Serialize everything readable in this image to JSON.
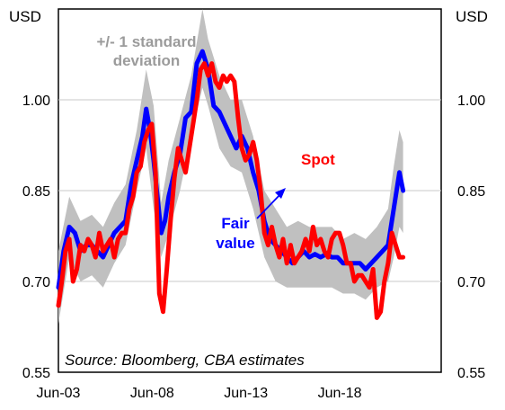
{
  "chart_data": {
    "type": "line",
    "units_left": "USD",
    "units_right": "USD",
    "ylim": [
      0.55,
      1.15
    ],
    "y_ticks": [
      "0.55",
      "0.70",
      "0.85",
      "1.00"
    ],
    "y_tick_values": [
      0.55,
      0.7,
      0.85,
      1.0
    ],
    "xlim": [
      2003.42,
      2023.83
    ],
    "x_ticks": [
      "Jun-03",
      "Jun-08",
      "Jun-13",
      "Jun-18"
    ],
    "x_tick_values": [
      2003.42,
      2008.42,
      2013.42,
      2018.42
    ],
    "gridlines_y": [
      1.0,
      0.85,
      0.7
    ],
    "annotations": {
      "band_label_line1": "+/- 1 standard",
      "band_label_line2": "deviation",
      "spot_label": "Spot",
      "fair_label_line1": "Fair",
      "fair_label_line2": "value",
      "source": "Source: Bloomberg, CBA estimates"
    },
    "colors": {
      "band": "#c0c0c0",
      "fair_value": "#0000ff",
      "spot": "#ff0000",
      "grey_text": "#9b9b9b"
    },
    "series": [
      {
        "name": "Fair value",
        "x": [
          2003.42,
          2003.7,
          2004.0,
          2004.3,
          2004.6,
          2004.9,
          2005.2,
          2005.5,
          2005.8,
          2006.1,
          2006.4,
          2006.7,
          2007.0,
          2007.3,
          2007.6,
          2007.9,
          2008.1,
          2008.3,
          2008.5,
          2008.7,
          2008.9,
          2009.1,
          2009.3,
          2009.6,
          2009.9,
          2010.2,
          2010.5,
          2010.8,
          2011.1,
          2011.4,
          2011.7,
          2012.0,
          2012.3,
          2012.6,
          2012.9,
          2013.2,
          2013.5,
          2013.8,
          2014.1,
          2014.4,
          2014.7,
          2015.0,
          2015.3,
          2015.6,
          2015.9,
          2016.2,
          2016.5,
          2016.8,
          2017.1,
          2017.4,
          2017.7,
          2018.0,
          2018.3,
          2018.6,
          2018.9,
          2019.2,
          2019.5,
          2019.8,
          2020.1,
          2020.4,
          2020.7,
          2021.0,
          2021.3,
          2021.6,
          2021.8
        ],
        "values": [
          0.69,
          0.75,
          0.79,
          0.78,
          0.75,
          0.76,
          0.76,
          0.75,
          0.74,
          0.76,
          0.78,
          0.79,
          0.8,
          0.86,
          0.9,
          0.94,
          0.985,
          0.95,
          0.9,
          0.84,
          0.78,
          0.8,
          0.84,
          0.88,
          0.91,
          0.97,
          0.98,
          1.06,
          1.08,
          1.05,
          0.99,
          0.98,
          0.96,
          0.94,
          0.92,
          0.94,
          0.92,
          0.88,
          0.85,
          0.8,
          0.77,
          0.76,
          0.75,
          0.74,
          0.73,
          0.74,
          0.75,
          0.74,
          0.745,
          0.74,
          0.745,
          0.74,
          0.74,
          0.73,
          0.73,
          0.73,
          0.73,
          0.72,
          0.73,
          0.74,
          0.75,
          0.76,
          0.82,
          0.88,
          0.85
        ]
      },
      {
        "name": "Spot",
        "x": [
          2003.42,
          2003.6,
          2003.8,
          2004.0,
          2004.2,
          2004.4,
          2004.6,
          2004.8,
          2005.0,
          2005.2,
          2005.4,
          2005.6,
          2005.8,
          2006.0,
          2006.2,
          2006.4,
          2006.6,
          2006.8,
          2007.0,
          2007.2,
          2007.4,
          2007.6,
          2007.8,
          2008.0,
          2008.2,
          2008.4,
          2008.6,
          2008.8,
          2009.0,
          2009.2,
          2009.4,
          2009.6,
          2009.8,
          2010.0,
          2010.2,
          2010.4,
          2010.6,
          2010.8,
          2011.0,
          2011.2,
          2011.4,
          2011.6,
          2011.8,
          2012.0,
          2012.2,
          2012.4,
          2012.6,
          2012.8,
          2013.0,
          2013.2,
          2013.4,
          2013.6,
          2013.8,
          2014.0,
          2014.2,
          2014.4,
          2014.6,
          2014.8,
          2015.0,
          2015.2,
          2015.4,
          2015.6,
          2015.8,
          2016.0,
          2016.2,
          2016.4,
          2016.6,
          2016.8,
          2017.0,
          2017.2,
          2017.4,
          2017.6,
          2017.8,
          2018.0,
          2018.2,
          2018.4,
          2018.6,
          2018.8,
          2019.0,
          2019.2,
          2019.4,
          2019.6,
          2019.8,
          2020.0,
          2020.2,
          2020.4,
          2020.6,
          2020.8,
          2021.0,
          2021.2,
          2021.4,
          2021.6,
          2021.8
        ],
        "values": [
          0.66,
          0.7,
          0.75,
          0.77,
          0.7,
          0.72,
          0.76,
          0.75,
          0.77,
          0.76,
          0.74,
          0.78,
          0.75,
          0.76,
          0.77,
          0.74,
          0.77,
          0.78,
          0.78,
          0.82,
          0.84,
          0.88,
          0.89,
          0.93,
          0.95,
          0.96,
          0.88,
          0.68,
          0.65,
          0.72,
          0.8,
          0.87,
          0.92,
          0.9,
          0.88,
          0.92,
          0.96,
          1.0,
          1.05,
          1.06,
          1.04,
          1.06,
          1.03,
          1.02,
          1.04,
          1.03,
          1.04,
          1.03,
          0.97,
          0.92,
          0.9,
          0.91,
          0.93,
          0.9,
          0.85,
          0.78,
          0.76,
          0.79,
          0.76,
          0.74,
          0.77,
          0.73,
          0.76,
          0.73,
          0.74,
          0.75,
          0.77,
          0.75,
          0.79,
          0.76,
          0.77,
          0.75,
          0.74,
          0.77,
          0.78,
          0.78,
          0.76,
          0.73,
          0.73,
          0.7,
          0.71,
          0.71,
          0.7,
          0.69,
          0.72,
          0.64,
          0.65,
          0.7,
          0.73,
          0.78,
          0.76,
          0.74,
          0.74
        ]
      },
      {
        "name": "+/- 1 standard deviation",
        "x": [
          2003.42,
          2004.0,
          2004.6,
          2005.2,
          2005.8,
          2006.4,
          2007.0,
          2007.6,
          2008.1,
          2008.5,
          2008.9,
          2009.3,
          2009.9,
          2010.5,
          2011.1,
          2011.4,
          2012.0,
          2012.6,
          2013.2,
          2013.8,
          2014.4,
          2015.0,
          2015.6,
          2016.2,
          2016.8,
          2017.4,
          2018.0,
          2018.6,
          2019.2,
          2019.8,
          2020.4,
          2021.0,
          2021.3,
          2021.6,
          2021.8
        ],
        "upper": [
          0.75,
          0.84,
          0.8,
          0.81,
          0.79,
          0.83,
          0.86,
          0.95,
          1.05,
          0.99,
          0.83,
          0.9,
          0.97,
          1.04,
          1.15,
          1.1,
          1.04,
          1.0,
          1.0,
          0.94,
          0.85,
          0.82,
          0.79,
          0.8,
          0.79,
          0.79,
          0.79,
          0.77,
          0.78,
          0.77,
          0.79,
          0.82,
          0.89,
          0.95,
          0.93
        ],
        "lower": [
          0.63,
          0.74,
          0.7,
          0.71,
          0.69,
          0.73,
          0.76,
          0.85,
          0.92,
          0.82,
          0.74,
          0.78,
          0.85,
          0.94,
          1.02,
          0.99,
          0.92,
          0.89,
          0.88,
          0.82,
          0.74,
          0.7,
          0.69,
          0.69,
          0.69,
          0.69,
          0.69,
          0.68,
          0.68,
          0.67,
          0.69,
          0.7,
          0.74,
          0.79,
          0.78
        ]
      }
    ]
  }
}
